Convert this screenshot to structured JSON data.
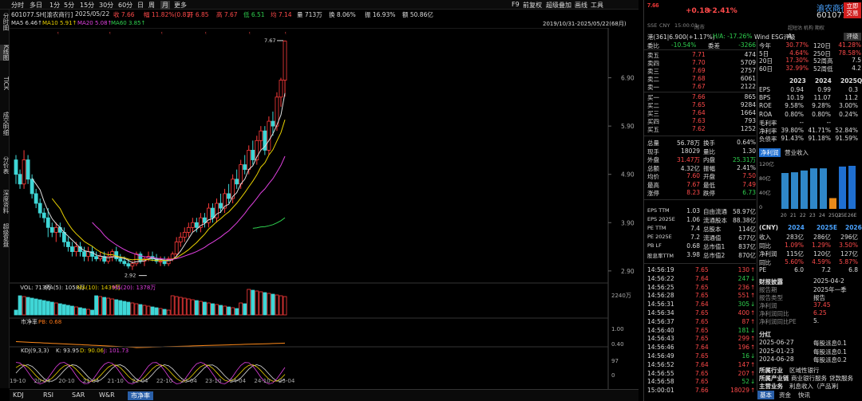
{
  "topbar": {
    "tabs": [
      "分时",
      "多日",
      "1分",
      "5分",
      "15分",
      "30分",
      "60分",
      "日",
      "周",
      "月",
      "更多"
    ],
    "active_tab": "月",
    "right": [
      "F9",
      "前复权",
      "超级叠加",
      "画线",
      "工具"
    ]
  },
  "info": {
    "code": "601077.SH[渝农商行]",
    "date": "2025/05/22",
    "close": "收 7.66",
    "change": "幅 11.82%(0.81)",
    "open": "开 6.85",
    "high": "高 7.67",
    "low": "低 6.51",
    "cur": "均 7.14",
    "vol": "量 713万",
    "turnover": "换 8.06%",
    "amp": "振 16.93%",
    "amount": "额 50.86亿"
  },
  "ma": {
    "ma5": "MA5 6.46↑",
    "ma10": "MA10 5.91↑",
    "ma20": "MA20 5.08↑",
    "ma60": "MA60 3.85↑",
    "range": "2019/10/31-2025/05/22(68月)"
  },
  "left_tabs": [
    "分时图",
    "K线图",
    "TICK",
    "成交明细",
    "分价表",
    "深度资料",
    "超级复盘"
  ],
  "chart_data": [
    {
      "type": "candlestick",
      "title": "",
      "y_ticks": [
        "6.90",
        "5.90",
        "4.90",
        "3.90",
        "2.90"
      ],
      "x_ticks": [
        "19-10",
        "20-04",
        "20-10",
        "21-04",
        "21-10",
        "22-04",
        "22-10",
        "23-04",
        "23-10",
        "24-04",
        "24-10",
        "25-04"
      ],
      "annotations": {
        "high_label": "7.67",
        "low_label": "2.92"
      },
      "candles": [
        [
          5.2,
          5.3,
          4.7,
          4.9
        ],
        [
          4.9,
          5.0,
          4.6,
          4.7
        ],
        [
          4.7,
          5.4,
          4.6,
          5.2
        ],
        [
          5.2,
          5.3,
          4.7,
          4.8
        ],
        [
          4.8,
          4.9,
          4.4,
          4.5
        ],
        [
          4.5,
          4.6,
          4.2,
          4.3
        ],
        [
          4.3,
          4.4,
          4.0,
          4.1
        ],
        [
          4.1,
          4.2,
          3.9,
          4.0
        ],
        [
          4.0,
          4.2,
          3.6,
          3.8
        ],
        [
          3.8,
          3.9,
          3.6,
          3.7
        ],
        [
          3.7,
          3.9,
          3.5,
          3.8
        ],
        [
          3.8,
          3.9,
          3.6,
          3.7
        ],
        [
          3.7,
          3.8,
          3.4,
          3.5
        ],
        [
          3.5,
          3.6,
          3.3,
          3.4
        ],
        [
          3.4,
          3.5,
          3.2,
          3.3
        ],
        [
          3.3,
          3.5,
          3.2,
          3.4
        ],
        [
          3.4,
          3.5,
          3.2,
          3.3
        ],
        [
          3.3,
          3.4,
          3.1,
          3.2
        ],
        [
          3.2,
          3.4,
          3.1,
          3.3
        ],
        [
          3.3,
          3.4,
          3.1,
          3.2
        ],
        [
          3.2,
          3.3,
          3.1,
          3.15
        ],
        [
          3.15,
          3.3,
          3.1,
          3.2
        ],
        [
          3.2,
          3.3,
          3.05,
          3.1
        ],
        [
          3.1,
          3.3,
          3.05,
          3.2
        ],
        [
          3.2,
          3.35,
          3.1,
          3.3
        ],
        [
          3.3,
          3.4,
          3.1,
          3.15
        ],
        [
          3.15,
          3.25,
          3.05,
          3.1
        ],
        [
          3.1,
          3.2,
          3.0,
          3.05
        ],
        [
          3.05,
          3.15,
          2.95,
          3.0
        ],
        [
          3.0,
          3.1,
          2.92,
          3.05
        ],
        [
          3.05,
          3.3,
          3.0,
          3.25
        ],
        [
          3.25,
          3.3,
          3.05,
          3.1
        ],
        [
          3.1,
          3.2,
          3.0,
          3.15
        ],
        [
          3.15,
          3.3,
          3.1,
          3.2
        ],
        [
          3.2,
          3.3,
          3.1,
          3.15
        ],
        [
          3.15,
          3.25,
          3.05,
          3.1
        ],
        [
          3.1,
          3.2,
          3.0,
          3.1
        ],
        [
          3.1,
          3.2,
          3.0,
          3.05
        ],
        [
          3.05,
          3.2,
          3.0,
          3.15
        ],
        [
          3.15,
          3.3,
          3.1,
          3.25
        ],
        [
          3.25,
          3.6,
          3.2,
          3.5
        ],
        [
          3.5,
          3.7,
          3.4,
          3.6
        ],
        [
          3.6,
          3.8,
          3.5,
          3.7
        ],
        [
          3.7,
          3.9,
          3.6,
          3.8
        ],
        [
          3.8,
          4.0,
          3.7,
          3.9
        ],
        [
          3.9,
          4.0,
          3.7,
          3.8
        ],
        [
          3.8,
          4.1,
          3.7,
          4.0
        ],
        [
          4.0,
          4.1,
          3.8,
          3.9
        ],
        [
          3.9,
          4.3,
          3.8,
          4.2
        ],
        [
          4.2,
          4.3,
          3.9,
          4.0
        ],
        [
          4.0,
          4.4,
          3.9,
          4.3
        ],
        [
          4.3,
          4.5,
          4.1,
          4.2
        ],
        [
          4.2,
          4.6,
          4.1,
          4.5
        ],
        [
          4.5,
          4.7,
          4.3,
          4.4
        ],
        [
          4.4,
          4.9,
          4.3,
          4.8
        ],
        [
          4.8,
          5.0,
          4.6,
          4.7
        ],
        [
          4.7,
          5.2,
          4.6,
          5.1
        ],
        [
          5.1,
          5.3,
          4.9,
          5.0
        ],
        [
          5.0,
          5.5,
          4.9,
          5.4
        ],
        [
          5.4,
          5.6,
          5.1,
          5.2
        ],
        [
          5.2,
          5.7,
          5.1,
          5.6
        ],
        [
          5.6,
          5.9,
          5.4,
          5.8
        ],
        [
          5.8,
          5.9,
          5.3,
          5.4
        ],
        [
          5.4,
          6.1,
          5.3,
          6.0
        ],
        [
          6.0,
          6.2,
          5.7,
          5.9
        ],
        [
          5.9,
          6.6,
          5.8,
          6.5
        ],
        [
          6.5,
          6.9,
          6.3,
          6.85
        ],
        [
          6.85,
          7.67,
          6.51,
          7.66
        ]
      ]
    },
    {
      "type": "bar",
      "title": "VOL",
      "legend": [
        "VOL: 713万",
        "MA(5): 1058万",
        "MA(10): 1439万",
        "MA(20): 1378万"
      ],
      "y_label": "2240万"
    },
    {
      "type": "line",
      "title": "市净率",
      "legend": [
        "市净率",
        "PB: 0.68"
      ],
      "y_ticks": [
        "1.00",
        "0.40"
      ]
    },
    {
      "type": "line",
      "title": "KDJ(9,3,3)",
      "legend": [
        "KDJ(9,3,3)",
        "K: 93.95",
        "D: 90.06",
        "J: 101.73"
      ],
      "y_ticks": [
        "97",
        "0"
      ]
    }
  ],
  "bottom_tabs": [
    "KDJ",
    "RSI",
    "SAR",
    "W&R",
    "市净率"
  ],
  "rp": {
    "price": "7.66",
    "chg": "+0.18",
    "pct": "+2.41%",
    "name": "渝农商行",
    "code": "601077",
    "btn1": "立即",
    "btn2": "交易",
    "sub": [
      "SSE",
      "CNY",
      "15:00:01",
      "闭市"
    ],
    "tag": "超短沽 机构 期权",
    "hk": "港(361|6.900(+1.17%)",
    "ha": "H/A: -17.26%",
    "esg": "Wind ESG评级",
    "esg_v": "A",
    "btn3": "评级",
    "webi": [
      "委比",
      "-10.54%",
      "委差",
      "-3266"
    ],
    "asks": [
      [
        "卖五",
        "7.71",
        "474"
      ],
      [
        "卖四",
        "7.70",
        "5709"
      ],
      [
        "卖三",
        "7.69",
        "2757"
      ],
      [
        "卖二",
        "7.68",
        "6061"
      ],
      [
        "卖一",
        "7.67",
        "2122"
      ]
    ],
    "bids": [
      [
        "买一",
        "7.66",
        "865"
      ],
      [
        "买二",
        "7.65",
        "9284"
      ],
      [
        "买三",
        "7.64",
        "1664"
      ],
      [
        "买四",
        "7.63",
        "793"
      ],
      [
        "买五",
        "7.62",
        "1252"
      ]
    ],
    "stats": [
      [
        "总量",
        "56.78万",
        "换手",
        "0.64%"
      ],
      [
        "现手",
        "18029",
        "量比",
        "1.30"
      ],
      [
        "外盘",
        "31.47万",
        "内盘",
        "25.31万"
      ],
      [
        "总额",
        "4.32亿",
        "振幅",
        "2.41%"
      ],
      [
        "均价",
        "7.60",
        "开盘",
        "7.50"
      ],
      [
        "最高",
        "7.67",
        "最低",
        "7.49"
      ],
      [
        "涨停",
        "8.23",
        "跌停",
        "6.73"
      ]
    ],
    "val": [
      [
        "EPS TTM",
        "1.03",
        "自由流通",
        "58.97亿"
      ],
      [
        "EPS 2025E",
        "1.06",
        "流通股本",
        "88.38亿"
      ],
      [
        "PE TTM",
        "7.4",
        "总股本",
        "114亿"
      ],
      [
        "PE 2025E",
        "7.2",
        "流通值",
        "677亿"
      ],
      [
        "PB LF",
        "0.68",
        "总市值1",
        "837亿"
      ],
      [
        "股息率TTM",
        "3.98",
        "总市值2",
        "870亿"
      ]
    ],
    "perf": [
      [
        "今年",
        "30.77%",
        "120日",
        "41.28%"
      ],
      [
        "5日",
        "4.64%",
        "250日",
        "78.58%"
      ],
      [
        "20日",
        "17.30%",
        "52周高",
        "7.5"
      ],
      [
        "60日",
        "32.99%",
        "52周低",
        "4.2"
      ]
    ],
    "fin_head": [
      "2023",
      "2024",
      "2025Q"
    ],
    "fin": [
      [
        "EPS",
        "0.94",
        "0.99",
        "0.3"
      ],
      [
        "BPS",
        "10.19",
        "11.07",
        "11.2"
      ],
      [
        "ROE",
        "9.58%",
        "9.28%",
        "3.00%"
      ],
      [
        "ROA",
        "0.80%",
        "0.80%",
        "0.24%"
      ],
      [
        "毛利率",
        "--",
        "--",
        ""
      ],
      [
        "净利率",
        "39.80%",
        "41.71%",
        "52.84%"
      ],
      [
        "负债率",
        "91.43%",
        "91.18%",
        "91.59%"
      ]
    ],
    "rev_tabs": [
      "净利润",
      "营业收入"
    ],
    "rev_ticks": [
      "120亿",
      "80亿",
      "40亿",
      "0"
    ],
    "rev_x": [
      "20",
      "21",
      "22",
      "23",
      "24",
      "25Q1",
      "25E",
      "26E"
    ],
    "rev_vals": [
      100,
      102,
      107,
      113,
      113,
      30,
      118,
      120
    ],
    "fc_head": [
      "(CNY)",
      "2024",
      "2025E",
      "2026E"
    ],
    "fc": [
      [
        "收入",
        "283亿",
        "286亿",
        "296亿"
      ],
      [
        "同比",
        "1.09%",
        "1.29%",
        "3.50%"
      ],
      [
        "净利润",
        "115亿",
        "120亿",
        "127亿"
      ],
      [
        "同比",
        "5.60%",
        "4.59%",
        "5.87%"
      ],
      [
        "PE",
        "6.0",
        "7.2",
        "6.8"
      ]
    ],
    "ticks": [
      [
        "14:56:19",
        "7.65",
        "130"
      ],
      [
        "14:56:22",
        "7.64",
        "247"
      ],
      [
        "14:56:25",
        "7.65",
        "236"
      ],
      [
        "14:56:28",
        "7.65",
        "551"
      ],
      [
        "14:56:31",
        "7.64",
        "305"
      ],
      [
        "14:56:34",
        "7.65",
        "400"
      ],
      [
        "14:56:37",
        "7.65",
        "87"
      ],
      [
        "14:56:40",
        "7.65",
        "181"
      ],
      [
        "14:56:43",
        "7.65",
        "299"
      ],
      [
        "14:56:46",
        "7.64",
        "196"
      ],
      [
        "14:56:49",
        "7.65",
        "16"
      ],
      [
        "14:56:52",
        "7.64",
        "147"
      ],
      [
        "14:56:55",
        "7.65",
        "207"
      ],
      [
        "14:56:58",
        "7.65",
        "52"
      ],
      [
        "15:00:01",
        "7.66",
        "18029"
      ]
    ],
    "news": [
      [
        "财报披露",
        "2025-04-2"
      ],
      [
        "报告期",
        "2025年一季"
      ],
      [
        "报告类型",
        "报告"
      ],
      [
        "净利润",
        "37.45"
      ],
      [
        "净利润同比",
        "6.25"
      ],
      [
        "净利润同比PE",
        "5."
      ]
    ],
    "div_title": "分红",
    "divs": [
      [
        "2025-06-27",
        "每股派息0.1"
      ],
      [
        "2025-01-23",
        "每股派息0.1"
      ],
      [
        "2024-06-28",
        "每股派息0.2"
      ]
    ],
    "ind": [
      "所属行业",
      "区域性银行"
    ],
    "ind2": [
      "所属产业链",
      "商业银行服务",
      "贷款服务"
    ],
    "ind3": [
      "主营业务",
      "利息收入（产品）",
      "利"
    ],
    "rtabs": [
      "基本",
      "资金",
      "快讯"
    ]
  }
}
